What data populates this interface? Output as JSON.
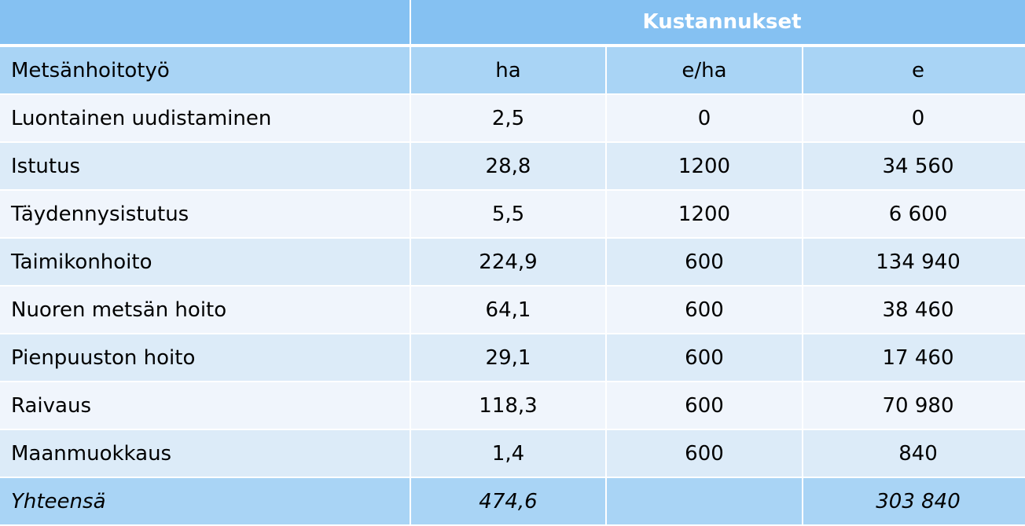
{
  "table": {
    "group_header": "Kustannukset",
    "columns": [
      "Metsänhoitotyö",
      "ha",
      "e/ha",
      "e"
    ],
    "rows": [
      [
        "Luontainen uudistaminen",
        "2,5",
        "0",
        "0"
      ],
      [
        "Istutus",
        "28,8",
        "1200",
        "34 560"
      ],
      [
        "Täydennysistutus",
        "5,5",
        "1200",
        "6 600"
      ],
      [
        "Taimikonhoito",
        "224,9",
        "600",
        "134 940"
      ],
      [
        "Nuoren metsän hoito",
        "64,1",
        "600",
        "38 460"
      ],
      [
        "Pienpuuston hoito",
        "29,1",
        "600",
        "17 460"
      ],
      [
        "Raivaus",
        "118,3",
        "600",
        "70 980"
      ],
      [
        "Maanmuokkaus",
        "1,4",
        "600",
        "840"
      ]
    ],
    "total": {
      "label": "Yhteensä",
      "ha": "474,6",
      "e": "303 840"
    }
  }
}
